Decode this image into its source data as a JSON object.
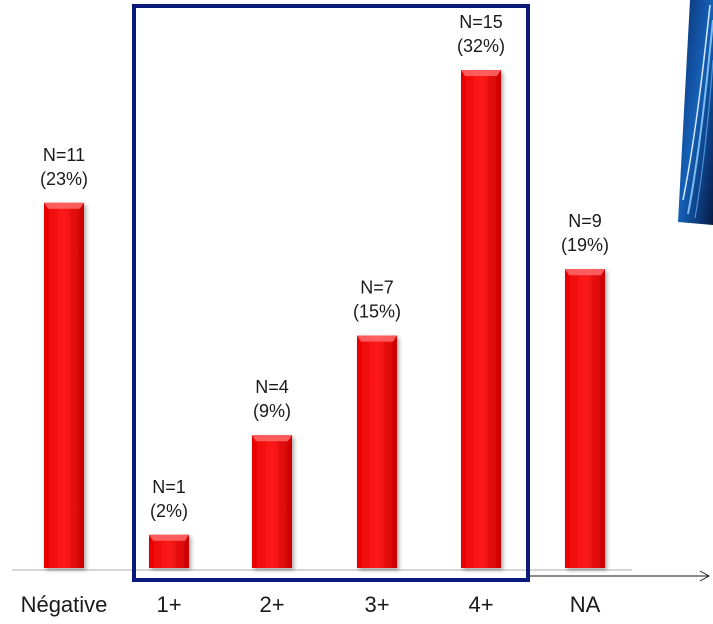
{
  "chart_data": {
    "type": "bar",
    "categories": [
      "Négative",
      "1+",
      "2+",
      "3+",
      "4+",
      "NA"
    ],
    "values": [
      11,
      1,
      4,
      7,
      15,
      9
    ],
    "labels_n": [
      "N=11",
      "N=1",
      "N=4",
      "N=7",
      "N=15",
      "N=9"
    ],
    "labels_pct": [
      "(23%)",
      "(2%)",
      "(9%)",
      "(15%)",
      "(32%)",
      "(19%)"
    ],
    "title": "",
    "xlabel": "",
    "ylabel": "",
    "ylim": [
      0,
      15
    ],
    "grid": false,
    "highlight": {
      "categories": [
        "1+",
        "2+",
        "3+",
        "4+"
      ],
      "color": "#0a1a7a"
    },
    "colors": {
      "bar": "#ff0000",
      "bar_top": "#ff6a6a",
      "bar_shadow": "#b30000",
      "axis": "#c8c8c8"
    }
  }
}
